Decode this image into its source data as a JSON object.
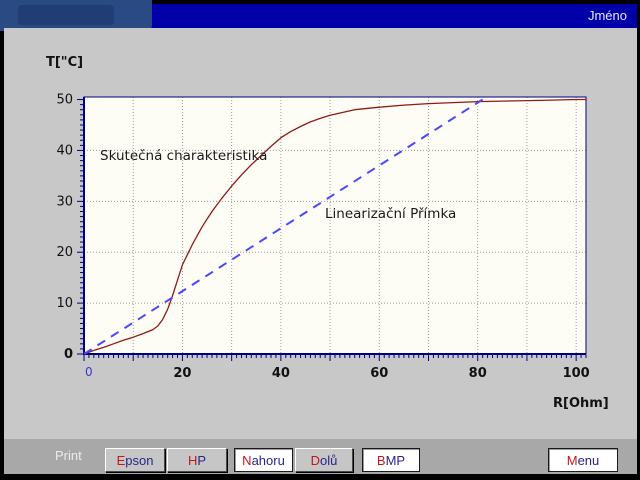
{
  "window": {
    "title_right": "Jméno"
  },
  "chart": {
    "y_axis_title": "T[\"C]",
    "x_axis_title": "R[Ohm]",
    "label_curve": "Skutečná charakteristika",
    "label_line": "Linearizační Přímka"
  },
  "footer": {
    "print_label": "Print",
    "buttons": [
      {
        "label": "Epson",
        "hot": "E",
        "rest": "pson"
      },
      {
        "label": "HP",
        "hot": "H",
        "rest": "P"
      },
      {
        "label": "Nahoru",
        "hot": "N",
        "rest": "ahoru"
      },
      {
        "label": "Dolů",
        "hot": "D",
        "rest": "olů"
      },
      {
        "label": "BMP",
        "hot": "B",
        "rest": "MP"
      },
      {
        "label": "Menu",
        "hot": "M",
        "rest": "enu"
      }
    ]
  },
  "chart_data": {
    "type": "line",
    "title": "",
    "xlabel": "R[Ohm]",
    "ylabel": "T[\"C]",
    "xlim": [
      0,
      102
    ],
    "ylim": [
      0,
      50.5
    ],
    "x_ticks": [
      0,
      20,
      40,
      60,
      80,
      100
    ],
    "y_ticks": [
      0,
      10,
      20,
      30,
      40,
      50
    ],
    "grid": true,
    "grid_step": 10,
    "grid_color": "#9b9b9b",
    "axis_color": "#000080",
    "plot_bg": "#fdfdf5",
    "zero_x_tick_color": "#3a3acc",
    "series": [
      {
        "name": "Skutečná charakteristika",
        "color": "#8f1a1a",
        "style": "solid",
        "points": [
          [
            0,
            0
          ],
          [
            2,
            0.7
          ],
          [
            4,
            1.3
          ],
          [
            6,
            2.0
          ],
          [
            8,
            2.7
          ],
          [
            10,
            3.3
          ],
          [
            12,
            4.0
          ],
          [
            14,
            4.8
          ],
          [
            15,
            5.5
          ],
          [
            16,
            6.8
          ],
          [
            17,
            8.8
          ],
          [
            18,
            11.5
          ],
          [
            19,
            14.5
          ],
          [
            20,
            17.5
          ],
          [
            22,
            21.5
          ],
          [
            24,
            25.0
          ],
          [
            26,
            28.0
          ],
          [
            28,
            30.6
          ],
          [
            30,
            33.0
          ],
          [
            32,
            35.2
          ],
          [
            34,
            37.2
          ],
          [
            36,
            39.0
          ],
          [
            38,
            40.8
          ],
          [
            40,
            42.5
          ],
          [
            42,
            43.7
          ],
          [
            44,
            44.7
          ],
          [
            46,
            45.6
          ],
          [
            48,
            46.3
          ],
          [
            50,
            46.9
          ],
          [
            55,
            48.0
          ],
          [
            60,
            48.5
          ],
          [
            65,
            48.9
          ],
          [
            70,
            49.2
          ],
          [
            75,
            49.4
          ],
          [
            80,
            49.6
          ],
          [
            85,
            49.7
          ],
          [
            90,
            49.8
          ],
          [
            95,
            49.9
          ],
          [
            100,
            50.0
          ],
          [
            102,
            50.0
          ]
        ]
      },
      {
        "name": "Linearizační Přímka",
        "color": "#4848ff",
        "style": "dashed",
        "points": [
          [
            0,
            0
          ],
          [
            81,
            50
          ]
        ]
      }
    ]
  }
}
